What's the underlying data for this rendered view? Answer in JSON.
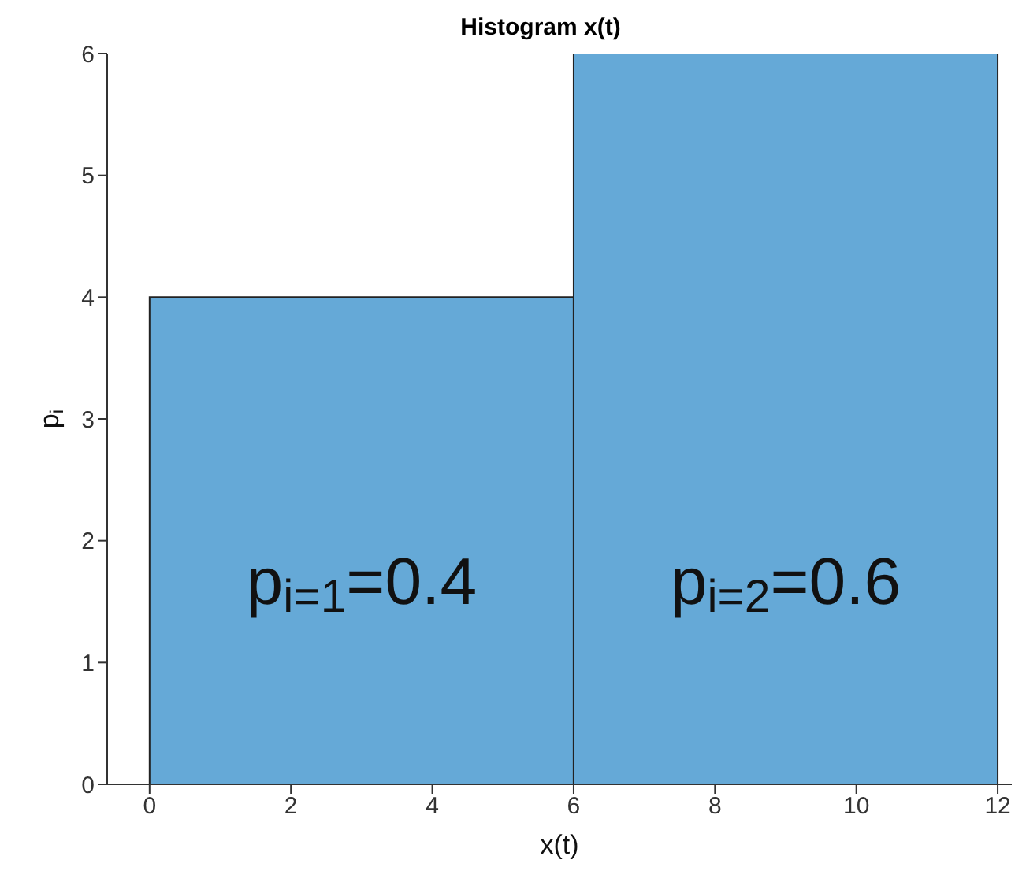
{
  "chart_data": {
    "type": "histogram",
    "title": "Histogram x(t)",
    "xlabel": "x(t)",
    "ylabel": "p$_{i}$",
    "bins": [
      0,
      6,
      12
    ],
    "values": [
      4,
      6
    ],
    "color": "#65a9d7",
    "xlim": [
      -0.6,
      12.2
    ],
    "xticks": [
      0,
      2,
      4,
      6,
      8,
      10,
      12
    ],
    "ylim": [
      0,
      6
    ],
    "yticks": [
      0,
      1,
      2,
      3,
      4,
      5,
      6
    ],
    "annotations": [
      "p$_{i=1}$=0.4",
      "p$_{i=2}$=0.6"
    ]
  }
}
